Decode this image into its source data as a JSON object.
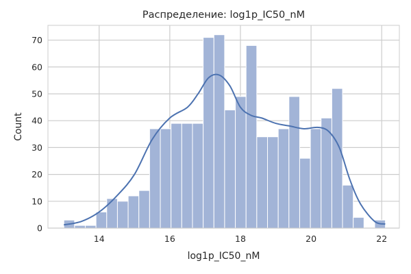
{
  "chart_data": {
    "type": "bar",
    "title": "Распределение: log1p_IC50_nM",
    "xlabel": "log1p_IC50_nM",
    "ylabel": "Count",
    "xlim": [
      12.55,
      22.5
    ],
    "ylim": [
      0,
      75.5
    ],
    "x_ticks": [
      14,
      16,
      18,
      20,
      22
    ],
    "y_ticks": [
      0,
      10,
      20,
      30,
      40,
      50,
      60,
      70
    ],
    "grid": true,
    "histogram": {
      "bin_start": 13.0,
      "bin_width": 0.3035,
      "counts": [
        3,
        1,
        1,
        6,
        11,
        10,
        12,
        14,
        37,
        37,
        39,
        39,
        39,
        71,
        72,
        44,
        49,
        68,
        34,
        34,
        37,
        49,
        26,
        37,
        41,
        52,
        16,
        4,
        0,
        3
      ]
    },
    "kde_line": {
      "x": [
        13.0,
        13.5,
        14.0,
        14.5,
        15.0,
        15.5,
        16.0,
        16.5,
        16.8,
        17.1,
        17.4,
        17.7,
        18.0,
        18.3,
        18.6,
        19.0,
        19.4,
        19.8,
        20.2,
        20.5,
        20.8,
        21.1,
        21.4,
        21.8,
        22.1
      ],
      "y": [
        1.2,
        2.5,
        6,
        12,
        20,
        33,
        41,
        45,
        50,
        56,
        57,
        53,
        45,
        42,
        41,
        39,
        38,
        37,
        37.5,
        36,
        30,
        18,
        9,
        2.5,
        1.5
      ]
    },
    "colors": {
      "bar_fill": "#a2b4d7",
      "bar_edge": "#ffffff",
      "line": "#4c72b0",
      "grid": "#cccccc",
      "frame": "#cccccc"
    }
  }
}
